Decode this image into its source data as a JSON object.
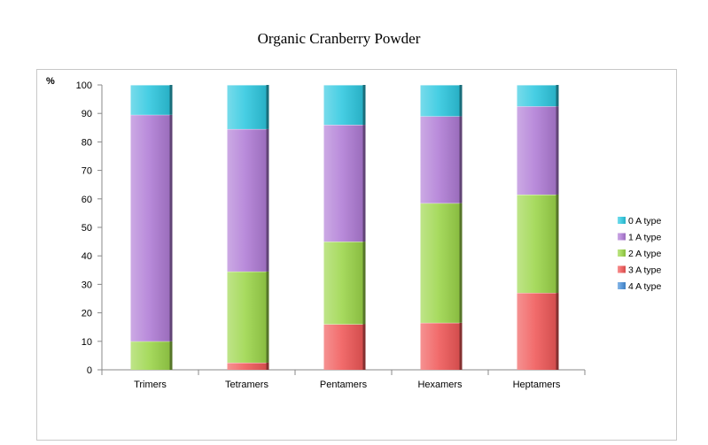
{
  "chart_data": {
    "type": "bar",
    "stacked": true,
    "title": "Organic Cranberry Powder",
    "ylabel": "%",
    "xlabel": "",
    "ylim": [
      0,
      100
    ],
    "yticks": [
      0,
      10,
      20,
      30,
      40,
      50,
      60,
      70,
      80,
      90,
      100
    ],
    "grid": false,
    "legend_position": "right",
    "categories": [
      "Trimers",
      "Tetramers",
      "Pentamers",
      "Hexamers",
      "Heptamers"
    ],
    "series": [
      {
        "name": "4 A type",
        "color": "#4a90d9",
        "values": [
          0,
          0,
          0,
          0,
          0
        ]
      },
      {
        "name": "3 A type",
        "color": "#f05858",
        "values": [
          0,
          2.5,
          16,
          16.5,
          27
        ]
      },
      {
        "name": "2 A type",
        "color": "#9cd64a",
        "values": [
          10,
          32,
          29,
          42,
          34.5
        ]
      },
      {
        "name": "1 A type",
        "color": "#b07cd6",
        "values": [
          79.5,
          50,
          41,
          30.5,
          31
        ]
      },
      {
        "name": "0 A type",
        "color": "#2ec8e0",
        "values": [
          10.5,
          15.5,
          14,
          11,
          7.5
        ]
      }
    ]
  }
}
